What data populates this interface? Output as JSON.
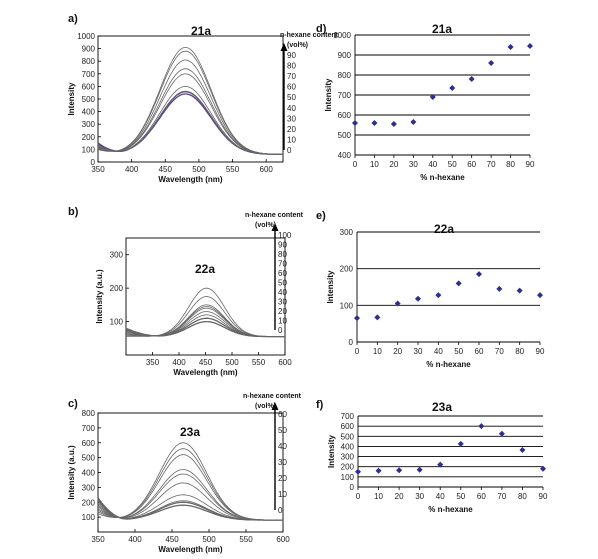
{
  "charts": [
    {
      "id": "a",
      "panel_label": "a)",
      "compound": "21a",
      "kind": "spectra",
      "ylabel": "Intensity",
      "xlabel": "Wavelength (nm)",
      "x_range": [
        350,
        625
      ],
      "y_range": [
        0,
        1000
      ],
      "xticks": [
        "350",
        "400",
        "450",
        "500",
        "550",
        "600"
      ],
      "yticks": [
        "0",
        "100",
        "200",
        "300",
        "400",
        "500",
        "600",
        "700",
        "800",
        "900",
        "1000"
      ],
      "content_title_1": "n-hexane content",
      "content_title_2": "(vol%)",
      "content_ticks": [
        "0",
        "10",
        "20",
        "30",
        "40",
        "50",
        "60",
        "70",
        "80",
        "90"
      ],
      "content_max": 90,
      "peak_nm": 480,
      "peak_values": [
        540,
        560,
        555,
        560,
        600,
        700,
        740,
        810,
        880,
        910
      ]
    },
    {
      "id": "b",
      "panel_label": "b)",
      "compound": "22a",
      "kind": "spectra",
      "ylabel": "Intensity (a.u.)",
      "xlabel": "Wavelength (nm)",
      "x_range": [
        300,
        600
      ],
      "y_range": [
        0,
        350
      ],
      "xticks": [
        "350",
        "400",
        "450",
        "500",
        "550",
        "600"
      ],
      "yticks": [
        "100",
        "200",
        "300"
      ],
      "content_title_1": "n-hexane content",
      "content_title_2": "(vol%)",
      "content_ticks": [
        "0",
        "10",
        "20",
        "30",
        "40",
        "50",
        "60",
        "70",
        "80",
        "90",
        "100"
      ],
      "content_max": 100,
      "peak_nm": 452,
      "peak_values": [
        100,
        110,
        120,
        130,
        140,
        145,
        150,
        175,
        200
      ]
    },
    {
      "id": "c",
      "panel_label": "c)",
      "compound": "23a",
      "kind": "spectra",
      "ylabel": "Intensity (a.u.)",
      "xlabel": "Wavelength (nm)",
      "x_range": [
        350,
        600
      ],
      "y_range": [
        0,
        800
      ],
      "xticks": [
        "350",
        "400",
        "450",
        "500",
        "550",
        "600"
      ],
      "yticks": [
        "100",
        "200",
        "300",
        "400",
        "500",
        "600",
        "700",
        "800"
      ],
      "content_title_1": "n-hexane content",
      "content_title_2": "(vol%)",
      "content_ticks": [
        "0",
        "10",
        "20",
        "30",
        "40",
        "50",
        "60"
      ],
      "content_max": 60,
      "peak_nm": 465,
      "peak_values": [
        180,
        200,
        210,
        250,
        330,
        390,
        420,
        520,
        560,
        600
      ]
    },
    {
      "id": "d",
      "panel_label": "d)",
      "compound": "21a",
      "kind": "scatter",
      "ylabel": "Intensity",
      "xlabel": "% n-hexane",
      "x_range": [
        0,
        90
      ],
      "y_range": [
        400,
        1000
      ],
      "xticks": [
        "0",
        "10",
        "20",
        "30",
        "40",
        "50",
        "60",
        "70",
        "80",
        "90"
      ],
      "yticks": [
        "400",
        "500",
        "600",
        "700",
        "800",
        "900",
        "1000"
      ],
      "x": [
        0,
        10,
        20,
        30,
        40,
        50,
        60,
        70,
        80,
        90
      ],
      "y": [
        560,
        560,
        555,
        565,
        690,
        735,
        780,
        860,
        940,
        945
      ]
    },
    {
      "id": "e",
      "panel_label": "e)",
      "compound": "22a",
      "kind": "scatter",
      "ylabel": "Intensity",
      "xlabel": "% n-hexane",
      "x_range": [
        0,
        90
      ],
      "y_range": [
        0,
        300
      ],
      "xticks": [
        "0",
        "10",
        "20",
        "30",
        "40",
        "50",
        "60",
        "70",
        "80",
        "90"
      ],
      "yticks": [
        "0",
        "100",
        "200",
        "300"
      ],
      "x": [
        0,
        10,
        20,
        30,
        40,
        50,
        60,
        70,
        80,
        90
      ],
      "y": [
        65,
        67,
        105,
        118,
        128,
        160,
        185,
        145,
        140,
        128
      ]
    },
    {
      "id": "f",
      "panel_label": "f)",
      "compound": "23a",
      "kind": "scatter",
      "ylabel": "Intensity",
      "xlabel": "% n-hexane",
      "x_range": [
        0,
        90
      ],
      "y_range": [
        0,
        700
      ],
      "xticks": [
        "0",
        "10",
        "20",
        "30",
        "40",
        "50",
        "60",
        "70",
        "80",
        "90"
      ],
      "yticks": [
        "0",
        "100",
        "200",
        "300",
        "400",
        "500",
        "600",
        "700"
      ],
      "x": [
        0,
        10,
        20,
        30,
        40,
        50,
        60,
        70,
        80,
        90
      ],
      "y": [
        150,
        160,
        165,
        170,
        220,
        425,
        600,
        525,
        365,
        180
      ]
    }
  ],
  "chart_data": [
    {
      "type": "line",
      "title": "21a",
      "xlabel": "Wavelength (nm)",
      "ylabel": "Intensity",
      "xlim": [
        350,
        625
      ],
      "ylim": [
        0,
        1000
      ],
      "grid": false,
      "series_note_values": "peak intensity at ~480 nm per n-hexane content",
      "x": [
        0,
        10,
        20,
        30,
        40,
        50,
        60,
        70,
        80,
        90
      ],
      "peak_values": [
        540,
        560,
        555,
        560,
        600,
        700,
        740,
        810,
        880,
        910
      ]
    },
    {
      "type": "line",
      "title": "22a",
      "xlabel": "Wavelength (nm)",
      "ylabel": "Intensity (a.u.)",
      "xlim": [
        300,
        600
      ],
      "ylim": [
        0,
        350
      ],
      "grid": false,
      "peak_values": [
        100,
        110,
        120,
        130,
        140,
        145,
        150,
        175,
        200
      ]
    },
    {
      "type": "line",
      "title": "23a",
      "xlabel": "Wavelength (nm)",
      "ylabel": "Intensity (a.u.)",
      "xlim": [
        350,
        600
      ],
      "ylim": [
        0,
        800
      ],
      "grid": false,
      "peak_values": [
        180,
        200,
        210,
        250,
        330,
        390,
        420,
        520,
        560,
        600
      ]
    },
    {
      "type": "scatter",
      "title": "21a",
      "xlabel": "% n-hexane",
      "ylabel": "Intensity",
      "xlim": [
        0,
        90
      ],
      "ylim": [
        400,
        1000
      ],
      "grid": true,
      "x": [
        0,
        10,
        20,
        30,
        40,
        50,
        60,
        70,
        80,
        90
      ],
      "y": [
        560,
        560,
        555,
        565,
        690,
        735,
        780,
        860,
        940,
        945
      ]
    },
    {
      "type": "scatter",
      "title": "22a",
      "xlabel": "% n-hexane",
      "ylabel": "Intensity",
      "xlim": [
        0,
        90
      ],
      "ylim": [
        0,
        300
      ],
      "grid": true,
      "x": [
        0,
        10,
        20,
        30,
        40,
        50,
        60,
        70,
        80,
        90
      ],
      "y": [
        65,
        67,
        105,
        118,
        128,
        160,
        185,
        145,
        140,
        128
      ]
    },
    {
      "type": "scatter",
      "title": "23a",
      "xlabel": "% n-hexane",
      "ylabel": "Intensity",
      "xlim": [
        0,
        90
      ],
      "ylim": [
        0,
        700
      ],
      "grid": true,
      "x": [
        0,
        10,
        20,
        30,
        40,
        50,
        60,
        70,
        80,
        90
      ],
      "y": [
        150,
        160,
        165,
        170,
        220,
        425,
        600,
        525,
        365,
        180
      ]
    }
  ],
  "colors": {
    "curve": "#666666",
    "curve_highlight": "#5b3f8f",
    "marker": "#2e2e8c",
    "axis": "#111111"
  }
}
